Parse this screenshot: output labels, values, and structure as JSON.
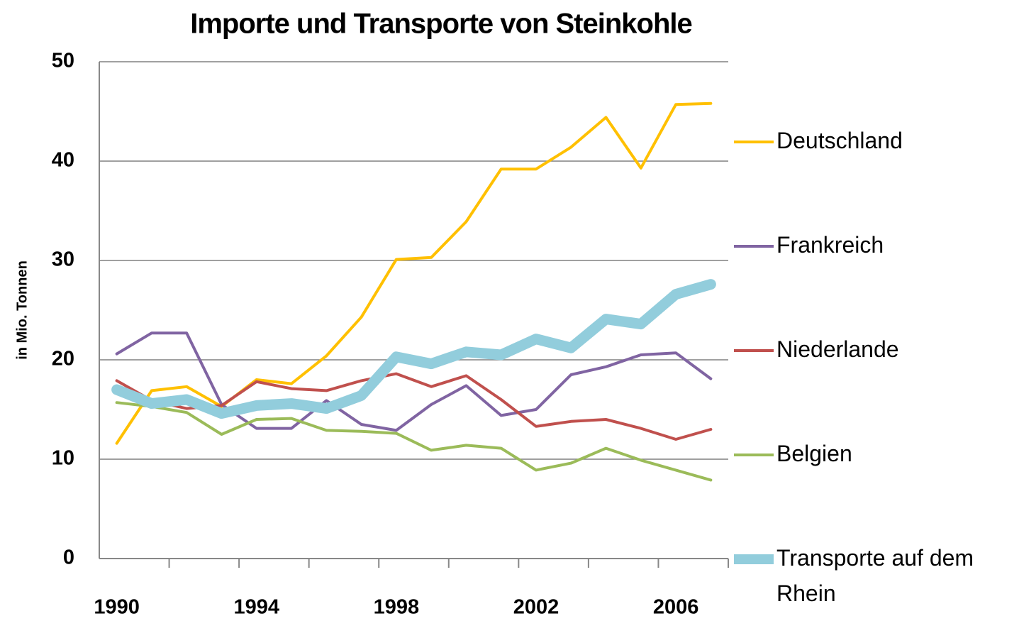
{
  "chart_data": {
    "type": "line",
    "title": "Importe und Transporte von Steinkohle",
    "y_label": "in Mio. Tonnen",
    "categories": [
      "1990",
      null,
      null,
      null,
      "1994",
      null,
      null,
      null,
      "1998",
      null,
      null,
      null,
      "2002",
      null,
      null,
      null,
      "2006",
      null
    ],
    "ylim": [
      0,
      50
    ],
    "yticks": [
      0,
      10,
      20,
      30,
      40,
      50
    ],
    "grid": true,
    "legend": "right",
    "series": [
      {
        "name": "Deutschland",
        "color": "#ffc000",
        "line_width": 4,
        "values": [
          11.6,
          16.9,
          17.3,
          15.3,
          18.0,
          17.6,
          20.4,
          24.3,
          30.1,
          30.3,
          33.9,
          39.2,
          39.2,
          41.4,
          44.4,
          39.3,
          45.7,
          45.8
        ]
      },
      {
        "name": "Frankreich",
        "color": "#8064a2",
        "line_width": 4,
        "values": [
          20.6,
          22.7,
          22.7,
          15.5,
          13.1,
          13.1,
          15.9,
          13.5,
          12.9,
          15.5,
          17.4,
          14.4,
          15.0,
          18.5,
          19.3,
          20.5,
          20.7,
          18.1
        ]
      },
      {
        "name": "Niederlande",
        "color": "#c0504d",
        "line_width": 4,
        "values": [
          17.9,
          15.9,
          15.1,
          15.4,
          17.8,
          17.1,
          16.9,
          17.9,
          18.6,
          17.3,
          18.4,
          16.0,
          13.3,
          13.8,
          14.0,
          13.1,
          12.0,
          13.0
        ]
      },
      {
        "name": "Belgien",
        "color": "#9bbb59",
        "line_width": 4,
        "values": [
          15.7,
          15.3,
          14.7,
          12.5,
          14.0,
          14.1,
          12.9,
          12.8,
          12.6,
          10.9,
          11.4,
          11.1,
          8.9,
          9.6,
          11.1,
          9.9,
          8.9,
          7.9
        ]
      },
      {
        "name": "Transporte auf dem Rhein",
        "color": "#92cddc",
        "line_width": 15,
        "values": [
          17.0,
          15.6,
          16.0,
          14.6,
          15.4,
          15.6,
          15.1,
          16.4,
          20.3,
          19.6,
          20.8,
          20.5,
          22.1,
          21.2,
          24.1,
          23.6,
          26.6,
          27.6
        ]
      }
    ]
  }
}
